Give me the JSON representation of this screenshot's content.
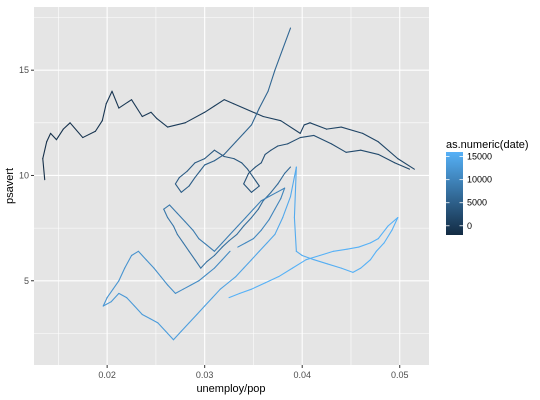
{
  "chart_data": {
    "type": "line",
    "title": "",
    "xlabel": "unemploy/pop",
    "ylabel": "psavert",
    "xlim": [
      0.0125,
      0.053
    ],
    "ylim": [
      1.0,
      18.0
    ],
    "x_ticks": [
      0.02,
      0.03,
      0.04,
      0.05
    ],
    "x_tick_labels": [
      "0.02",
      "0.03",
      "0.04",
      "0.05"
    ],
    "y_ticks": [
      5,
      10,
      15
    ],
    "y_tick_labels": [
      "5",
      "10",
      "15"
    ],
    "grid": true,
    "panel_background": "#e5e5e5",
    "gridline_color": "#ffffff",
    "legend": {
      "title": "as.numeric(date)",
      "position": "right",
      "min": -2000,
      "max": 16000,
      "breaks": [
        0,
        5000,
        10000,
        15000
      ],
      "break_labels": [
        "0",
        "5000",
        "10000",
        "15000"
      ],
      "color_low": "#132b43",
      "color_high": "#56b1f7"
    },
    "series": [
      {
        "x": [
          0.0136,
          0.0134,
          0.0138,
          0.0142,
          0.0148,
          0.0155,
          0.0162,
          0.0175,
          0.0188,
          0.0195,
          0.0199,
          0.0205,
          0.0212,
          0.0225,
          0.0236,
          0.0245,
          0.0251,
          0.0262,
          0.028,
          0.03,
          0.031,
          0.032,
          0.033,
          0.036,
          0.0378,
          0.0398,
          0.0402,
          0.0408,
          0.0425,
          0.044,
          0.0462,
          0.0478,
          0.0498,
          0.0515
        ],
        "y": [
          9.8,
          10.8,
          11.6,
          12.0,
          11.7,
          12.2,
          12.5,
          11.8,
          12.1,
          12.6,
          13.4,
          14.0,
          13.2,
          13.6,
          12.8,
          13.0,
          12.7,
          12.3,
          12.5,
          13.0,
          13.3,
          13.6,
          13.4,
          12.8,
          12.6,
          12.0,
          12.4,
          12.5,
          12.2,
          12.3,
          12.0,
          11.6,
          10.8,
          10.3
        ],
        "date_numeric": [
          -1500,
          -1400,
          -1300,
          -1200,
          -1100,
          -1000,
          -900,
          -800,
          -700,
          -600,
          -500,
          -400,
          -300,
          -200,
          -100,
          0,
          100,
          200,
          300,
          400,
          500,
          600,
          700,
          800,
          900,
          1000,
          1100,
          1200,
          1300,
          1400,
          1500,
          1600,
          1700,
          1800
        ]
      },
      {
        "x": [
          0.051,
          0.0495,
          0.0478,
          0.046,
          0.0445,
          0.043,
          0.0412,
          0.0398,
          0.0385,
          0.0375,
          0.0368,
          0.0362,
          0.0358,
          0.0352,
          0.0345,
          0.034,
          0.0348,
          0.0356,
          0.035,
          0.0344,
          0.0338,
          0.033,
          0.032,
          0.031,
          0.03,
          0.029,
          0.0282,
          0.0274,
          0.027,
          0.0276,
          0.0284,
          0.029,
          0.0295,
          0.03,
          0.031,
          0.032,
          0.0332,
          0.034,
          0.0348,
          0.0356,
          0.0365,
          0.0372,
          0.038,
          0.0388
        ],
        "y": [
          10.3,
          10.6,
          11.0,
          11.2,
          11.1,
          11.5,
          11.9,
          11.8,
          11.5,
          11.4,
          11.2,
          11.0,
          10.6,
          10.4,
          10.1,
          9.6,
          9.2,
          9.5,
          9.9,
          10.3,
          10.6,
          10.8,
          10.9,
          11.2,
          10.8,
          10.6,
          10.2,
          9.9,
          9.6,
          9.2,
          9.5,
          9.9,
          10.2,
          10.5,
          10.7,
          11.0,
          11.6,
          12.0,
          12.4,
          13.2,
          14.0,
          15.0,
          16.0,
          17.0
        ],
        "date_numeric": [
          1900,
          2000,
          2100,
          2200,
          2300,
          2400,
          2500,
          2600,
          2700,
          2800,
          2900,
          3000,
          3100,
          3200,
          3300,
          3400,
          3500,
          3600,
          3700,
          3800,
          3900,
          4000,
          4100,
          4200,
          4300,
          4400,
          4500,
          4600,
          4700,
          4800,
          4900,
          5000,
          5100,
          5200,
          5300,
          5400,
          5500,
          5600,
          5700,
          5800,
          5900,
          6000,
          6100,
          6200
        ]
      },
      {
        "x": [
          0.0388,
          0.0382,
          0.0375,
          0.0368,
          0.036,
          0.0355,
          0.0348,
          0.034,
          0.0333,
          0.0325,
          0.0318,
          0.031,
          0.0302,
          0.0296,
          0.029,
          0.0284,
          0.0278,
          0.0272,
          0.0268,
          0.0262,
          0.0258,
          0.0264,
          0.0272,
          0.028,
          0.0288,
          0.0294,
          0.0302,
          0.031,
          0.0318,
          0.0326,
          0.0334,
          0.0342,
          0.035,
          0.0358,
          0.0366,
          0.0374,
          0.0382,
          0.0378,
          0.0372,
          0.0366,
          0.0358,
          0.035,
          0.0342,
          0.0334
        ],
        "y": [
          10.4,
          10.1,
          9.6,
          9.2,
          8.8,
          8.4,
          8.0,
          7.6,
          7.2,
          6.9,
          6.6,
          6.2,
          5.9,
          5.6,
          6.0,
          6.4,
          6.8,
          7.2,
          7.6,
          8.0,
          8.4,
          8.6,
          8.2,
          7.8,
          7.4,
          7.0,
          6.7,
          6.4,
          6.8,
          7.2,
          7.6,
          8.0,
          8.4,
          8.8,
          9.0,
          9.2,
          9.4,
          8.9,
          8.4,
          7.9,
          7.4,
          7.0,
          6.8,
          6.6
        ],
        "date_numeric": [
          6300,
          6400,
          6500,
          6600,
          6700,
          6800,
          6900,
          7000,
          7100,
          7200,
          7300,
          7400,
          7500,
          7600,
          7700,
          7800,
          7900,
          8000,
          8100,
          8200,
          8300,
          8400,
          8500,
          8600,
          8700,
          8800,
          8900,
          9000,
          9100,
          9200,
          9300,
          9400,
          9500,
          9600,
          9700,
          9800,
          9900,
          10000,
          10100,
          10200,
          10300,
          10400,
          10500,
          10600
        ]
      },
      {
        "x": [
          0.0326,
          0.0318,
          0.031,
          0.0302,
          0.0294,
          0.0286,
          0.0278,
          0.027,
          0.0262,
          0.0255,
          0.0248,
          0.024,
          0.0232,
          0.0225,
          0.0218,
          0.0212,
          0.0206,
          0.02,
          0.0196,
          0.0204,
          0.0212,
          0.022,
          0.0228,
          0.0236,
          0.0244,
          0.0252,
          0.026,
          0.0268,
          0.0276,
          0.0284,
          0.0292,
          0.03,
          0.0308,
          0.0316,
          0.0324,
          0.0332,
          0.034,
          0.0348,
          0.0356,
          0.0364,
          0.0372,
          0.038,
          0.0388,
          0.0394
        ],
        "y": [
          6.4,
          6.0,
          5.6,
          5.3,
          5.0,
          4.8,
          4.6,
          4.4,
          4.8,
          5.2,
          5.6,
          6.0,
          6.4,
          6.2,
          5.6,
          5.0,
          4.6,
          4.2,
          3.8,
          4.0,
          4.4,
          4.2,
          3.8,
          3.4,
          3.2,
          3.0,
          2.6,
          2.2,
          2.6,
          3.0,
          3.4,
          3.8,
          4.2,
          4.6,
          4.9,
          5.2,
          5.6,
          6.0,
          6.4,
          6.8,
          7.2,
          8.0,
          9.0,
          10.4
        ],
        "date_numeric": [
          10700,
          10800,
          10900,
          11000,
          11100,
          11200,
          11300,
          11400,
          11500,
          11600,
          11700,
          11800,
          11900,
          12000,
          12100,
          12200,
          12300,
          12400,
          12500,
          12600,
          12700,
          12800,
          12900,
          13000,
          13100,
          13200,
          13300,
          13400,
          13500,
          13600,
          13700,
          13800,
          13900,
          14000,
          14100,
          14200,
          14300,
          14400,
          14500,
          14600,
          14700,
          14800,
          14900,
          15000
        ]
      },
      {
        "x": [
          0.0394,
          0.0392,
          0.0394,
          0.04,
          0.0412,
          0.0426,
          0.044,
          0.0452,
          0.046,
          0.0465,
          0.047,
          0.0476,
          0.0484,
          0.0492,
          0.0498,
          0.0488,
          0.0478,
          0.047,
          0.0458,
          0.0446,
          0.0432,
          0.0418,
          0.0404,
          0.039,
          0.0376,
          0.0362,
          0.0348,
          0.0336,
          0.0325
        ],
        "y": [
          10.4,
          8.0,
          6.4,
          6.2,
          6.0,
          5.8,
          5.6,
          5.4,
          5.6,
          5.8,
          6.0,
          6.4,
          6.8,
          7.4,
          8.0,
          7.6,
          7.0,
          6.8,
          6.6,
          6.5,
          6.4,
          6.2,
          6.0,
          5.6,
          5.2,
          4.9,
          4.6,
          4.4,
          4.2
        ],
        "date_numeric": [
          15100,
          15200,
          15300,
          15400,
          15500,
          15600,
          15700,
          15800,
          15900,
          16000,
          16100,
          16200,
          16300,
          16400,
          16500,
          16600,
          16700,
          16800,
          16900,
          17000,
          17100,
          17200,
          17300,
          17400,
          17500,
          17600,
          17700,
          17800,
          17900
        ]
      }
    ]
  }
}
